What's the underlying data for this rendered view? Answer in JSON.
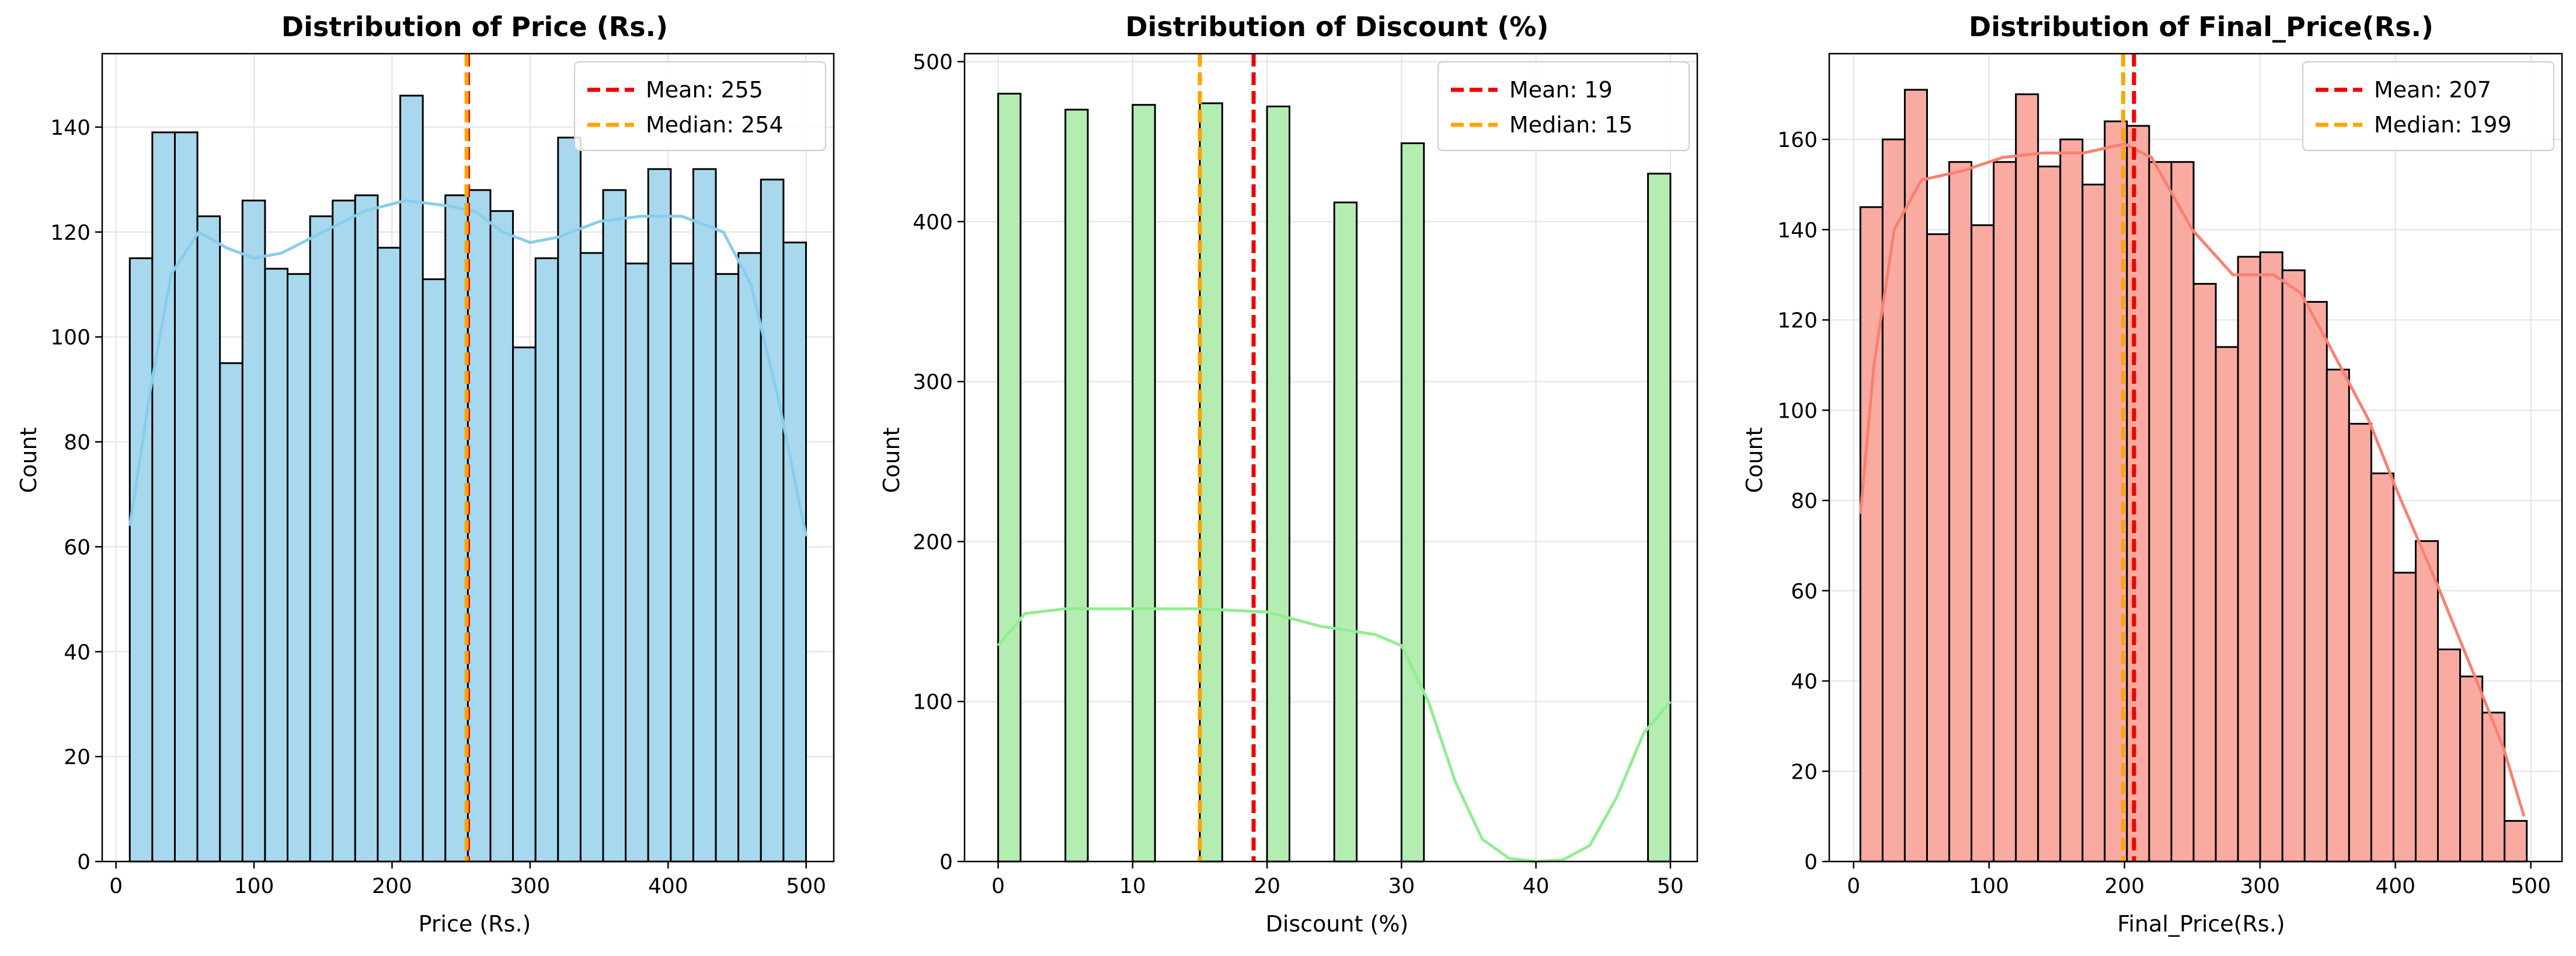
{
  "chart_data": [
    {
      "type": "bar",
      "title": "Distribution of Price (Rs.)",
      "xlabel": "Price (Rs.)",
      "ylabel": "Count",
      "xlim": [
        -10,
        520
      ],
      "ylim": [
        0,
        154
      ],
      "xticks": [
        0,
        100,
        200,
        300,
        400,
        500
      ],
      "yticks": [
        0,
        20,
        40,
        60,
        80,
        100,
        120,
        140
      ],
      "bar_color": "#a8d8ee",
      "kde_color": "#87ceeb",
      "bin_start": 10,
      "bin_width": 16.33,
      "values": [
        115,
        139,
        139,
        123,
        95,
        126,
        113,
        112,
        123,
        126,
        127,
        117,
        146,
        111,
        127,
        128,
        124,
        98,
        115,
        138,
        116,
        128,
        114,
        132,
        114,
        132,
        112,
        116,
        130,
        118
      ],
      "kde": [
        [
          10,
          64
        ],
        [
          25,
          90
        ],
        [
          40,
          112
        ],
        [
          60,
          120
        ],
        [
          80,
          117
        ],
        [
          100,
          115
        ],
        [
          120,
          116
        ],
        [
          150,
          120
        ],
        [
          180,
          124
        ],
        [
          210,
          126
        ],
        [
          240,
          125
        ],
        [
          260,
          124
        ],
        [
          280,
          120
        ],
        [
          300,
          118
        ],
        [
          320,
          119
        ],
        [
          350,
          122
        ],
        [
          380,
          123
        ],
        [
          410,
          123
        ],
        [
          440,
          120
        ],
        [
          460,
          110
        ],
        [
          480,
          88
        ],
        [
          500,
          62
        ]
      ],
      "mean": 255,
      "median": 254,
      "legend": [
        "Mean: 255",
        "Median: 254"
      ],
      "legend_position": "upper right",
      "grid": true
    },
    {
      "type": "bar",
      "title": "Distribution of Discount (%)",
      "xlabel": "Discount (%)",
      "ylabel": "Count",
      "xlim": [
        -2.5,
        52
      ],
      "ylim": [
        0,
        505
      ],
      "xticks": [
        0,
        10,
        20,
        30,
        40,
        50
      ],
      "yticks": [
        0,
        100,
        200,
        300,
        400,
        500
      ],
      "bar_color": "#b3edb1",
      "kde_color": "#90ee90",
      "bin_start": 0,
      "bin_width": 1.6667,
      "values": [
        480,
        0,
        0,
        470,
        0,
        0,
        473,
        0,
        0,
        474,
        0,
        0,
        472,
        0,
        0,
        412,
        0,
        0,
        449,
        0,
        0,
        0,
        0,
        0,
        0,
        0,
        0,
        0,
        0,
        430
      ],
      "kde": [
        [
          0,
          135
        ],
        [
          2,
          155
        ],
        [
          5,
          158
        ],
        [
          10,
          158
        ],
        [
          15,
          158
        ],
        [
          20,
          156
        ],
        [
          24,
          147
        ],
        [
          28,
          142
        ],
        [
          30,
          135
        ],
        [
          32,
          100
        ],
        [
          34,
          50
        ],
        [
          36,
          14
        ],
        [
          38,
          2
        ],
        [
          40,
          0
        ],
        [
          42,
          1
        ],
        [
          44,
          10
        ],
        [
          46,
          40
        ],
        [
          48,
          80
        ],
        [
          50,
          100
        ]
      ],
      "mean": 19,
      "median": 15,
      "legend": [
        "Mean: 19",
        "Median: 15"
      ],
      "legend_position": "upper right",
      "grid": true
    },
    {
      "type": "bar",
      "title": "Distribution of Final_Price(Rs.)",
      "xlabel": "Final_Price(Rs.)",
      "ylabel": "Count",
      "xlim": [
        -18,
        523
      ],
      "ylim": [
        0,
        179
      ],
      "xticks": [
        0,
        100,
        200,
        300,
        400,
        500
      ],
      "yticks": [
        0,
        20,
        40,
        60,
        80,
        100,
        120,
        140,
        160
      ],
      "bar_color": "#f9aba1",
      "kde_color": "#fa8072",
      "bin_start": 5,
      "bin_width": 16.4,
      "values": [
        145,
        160,
        171,
        139,
        155,
        141,
        155,
        170,
        154,
        160,
        150,
        164,
        163,
        155,
        155,
        128,
        114,
        134,
        135,
        131,
        124,
        109,
        97,
        86,
        64,
        71,
        47,
        41,
        33,
        9
      ],
      "kde": [
        [
          5,
          77
        ],
        [
          15,
          110
        ],
        [
          30,
          140
        ],
        [
          50,
          151
        ],
        [
          80,
          153
        ],
        [
          110,
          156
        ],
        [
          140,
          157
        ],
        [
          170,
          157
        ],
        [
          200,
          159
        ],
        [
          220,
          156
        ],
        [
          250,
          140
        ],
        [
          280,
          130
        ],
        [
          310,
          130
        ],
        [
          330,
          126
        ],
        [
          350,
          115
        ],
        [
          380,
          98
        ],
        [
          400,
          83
        ],
        [
          430,
          62
        ],
        [
          460,
          40
        ],
        [
          480,
          25
        ],
        [
          495,
          10
        ]
      ],
      "mean": 207,
      "median": 199,
      "legend": [
        "Mean: 207",
        "Median: 199"
      ],
      "legend_position": "upper right",
      "grid": true
    }
  ],
  "colors": {
    "mean_line": "#ee0000",
    "median_line": "#ffa500"
  }
}
